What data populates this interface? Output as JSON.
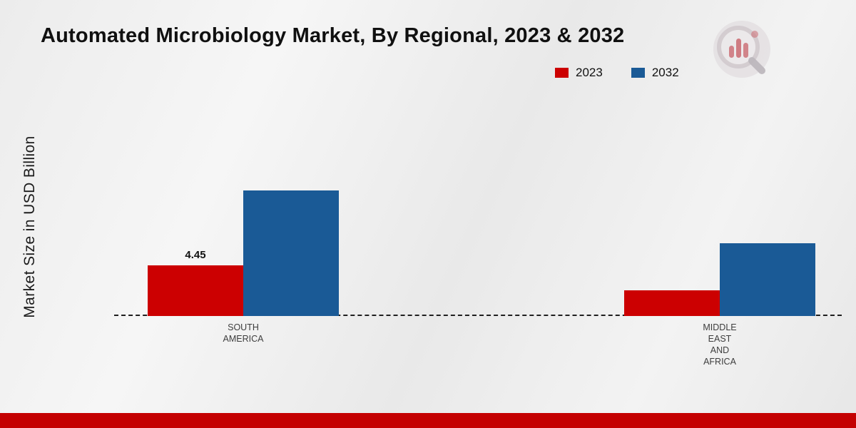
{
  "title": "Automated Microbiology Market, By Regional, 2023 & 2032",
  "y_axis_label": "Market Size in USD Billion",
  "legend": {
    "position": "top-right",
    "items": [
      {
        "label": "2023",
        "color": "#cc0001"
      },
      {
        "label": "2032",
        "color": "#1a5a96"
      }
    ]
  },
  "logo": {
    "name": "market-research-future-watermark"
  },
  "footer": {
    "color": "#c40001"
  },
  "chart_data": {
    "type": "bar",
    "title": "Automated Microbiology Market, By Regional, 2023 & 2032",
    "xlabel": "",
    "ylabel": "Market Size in USD Billion",
    "categories": [
      "SOUTH AMERICA",
      "MIDDLE EAST AND AFRICA"
    ],
    "category_label_lines": [
      [
        "SOUTH",
        "AMERICA"
      ],
      [
        "MIDDLE",
        "EAST",
        "AND",
        "AFRICA"
      ]
    ],
    "series": [
      {
        "name": "2023",
        "color": "#cc0001",
        "values": [
          4.45,
          2.25
        ],
        "labels": [
          "4.45",
          ""
        ]
      },
      {
        "name": "2032",
        "color": "#1a5a96",
        "values": [
          11.0,
          6.4
        ],
        "labels": [
          "",
          ""
        ]
      }
    ],
    "ylim": [
      0,
      12.5
    ],
    "grid": false,
    "baseline_style": "dashed",
    "legend_position": "top-right"
  }
}
